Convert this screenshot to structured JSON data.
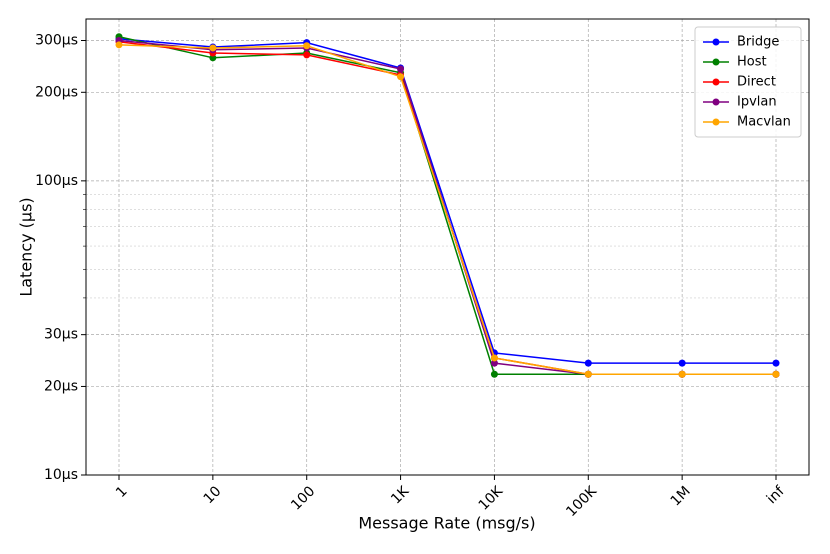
{
  "chart_data": {
    "type": "line",
    "x_label": "Message Rate (msg/s)",
    "y_label": "Latency (µs)",
    "categories": [
      "1",
      "10",
      "100",
      "1K",
      "10K",
      "100K",
      "1M",
      "inf"
    ],
    "series": [
      {
        "name": "Bridge",
        "color": "#0000ff",
        "values": [
          304,
          285,
          295,
          242,
          26,
          24,
          24,
          24
        ]
      },
      {
        "name": "Host",
        "color": "#008000",
        "values": [
          309,
          262,
          272,
          233,
          22,
          22,
          22,
          22
        ]
      },
      {
        "name": "Direct",
        "color": "#ff0000",
        "values": [
          297,
          272,
          268,
          229,
          25,
          22,
          22,
          22
        ]
      },
      {
        "name": "Ipvlan",
        "color": "#800080",
        "values": [
          300,
          279,
          283,
          240,
          24,
          22,
          22,
          22
        ]
      },
      {
        "name": "Macvlan",
        "color": "#ffa500",
        "values": [
          290,
          283,
          288,
          226,
          25,
          22,
          22,
          22
        ]
      }
    ],
    "y_scale": "log",
    "ylim": [
      10,
      355
    ],
    "yticks": [
      {
        "value": 10,
        "label": "10µs"
      },
      {
        "value": 20,
        "label": "20µs"
      },
      {
        "value": 30,
        "label": "30µs"
      },
      {
        "value": 100,
        "label": "100µs"
      },
      {
        "value": 200,
        "label": "200µs"
      },
      {
        "value": 300,
        "label": "300µs"
      }
    ],
    "minor_yticks": [
      40,
      50,
      60,
      70,
      80,
      90
    ],
    "grid": true,
    "legend": "upper right"
  }
}
